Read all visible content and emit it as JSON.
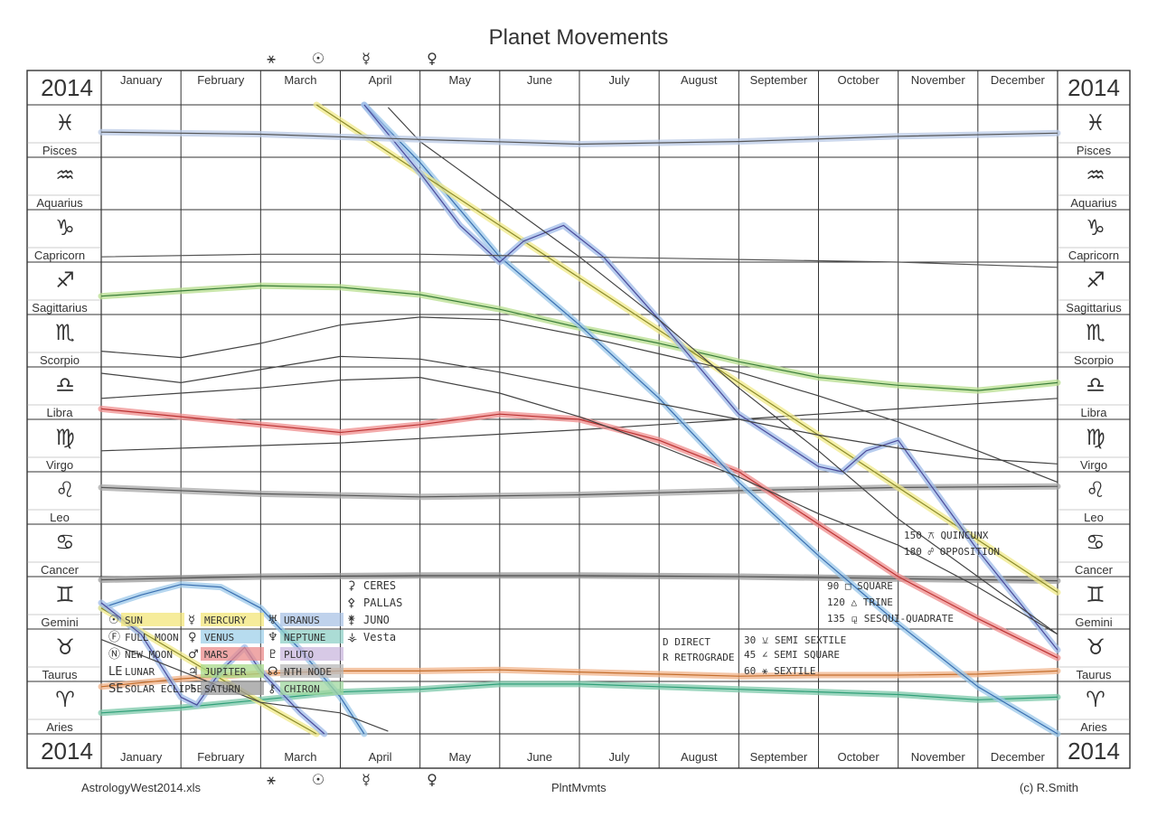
{
  "title": "Planet Movements",
  "year": "2014",
  "months": [
    "January",
    "February",
    "March",
    "April",
    "May",
    "June",
    "July",
    "August",
    "September",
    "October",
    "November",
    "December"
  ],
  "signs": [
    {
      "name": "Pisces",
      "glyph": "♓"
    },
    {
      "name": "Aquarius",
      "glyph": "♒"
    },
    {
      "name": "Capricorn",
      "glyph": "♑"
    },
    {
      "name": "Sagittarius",
      "glyph": "♐"
    },
    {
      "name": "Scorpio",
      "glyph": "♏"
    },
    {
      "name": "Libra",
      "glyph": "♎"
    },
    {
      "name": "Virgo",
      "glyph": "♍"
    },
    {
      "name": "Leo",
      "glyph": "♌"
    },
    {
      "name": "Cancer",
      "glyph": "♋"
    },
    {
      "name": "Gemini",
      "glyph": "♊"
    },
    {
      "name": "Taurus",
      "glyph": "♉"
    },
    {
      "name": "Aries",
      "glyph": "♈"
    }
  ],
  "ingress_top": [
    "⚹",
    "☉",
    "☿",
    "♀"
  ],
  "legend": {
    "bodies": [
      {
        "glyph": "☉",
        "label": "SUN",
        "color": "#f3e57a"
      },
      {
        "glyph": "Ⓕ",
        "label": "FULL MOON",
        "color": ""
      },
      {
        "glyph": "Ⓝ",
        "label": "NEW MOON",
        "color": ""
      },
      {
        "glyph": "LE",
        "label": "LUNAR",
        "color": ""
      },
      {
        "glyph": "SE",
        "label": "SOLAR ECLIPSE",
        "color": ""
      },
      {
        "glyph": "☿",
        "label": "MERCURY",
        "color": "#f3e57a"
      },
      {
        "glyph": "♀",
        "label": "VENUS",
        "color": "#9fd0ea"
      },
      {
        "glyph": "♂",
        "label": "MARS",
        "color": "#e98b8b"
      },
      {
        "glyph": "♃",
        "label": "JUPITER",
        "color": "#a8d98a"
      },
      {
        "glyph": "♄",
        "label": "SATURN",
        "color": "#9a9a9a"
      },
      {
        "glyph": "♅",
        "label": "URANUS",
        "color": "#a9c3e6"
      },
      {
        "glyph": "♆",
        "label": "NEPTUNE",
        "color": "#8fd0c7"
      },
      {
        "glyph": "♇",
        "label": "PLUTO",
        "color": "#c9b7dd"
      },
      {
        "glyph": "☊",
        "label": "NTH NODE",
        "color": "#b8b8b8"
      },
      {
        "glyph": "⚷",
        "label": "CHIRON",
        "color": "#9fd79f"
      },
      {
        "glyph": "⚳",
        "label": "CERES",
        "color": ""
      },
      {
        "glyph": "⚴",
        "label": "PALLAS",
        "color": ""
      },
      {
        "glyph": "⚵",
        "label": "JUNO",
        "color": ""
      },
      {
        "glyph": "⚶",
        "label": "Vesta",
        "color": ""
      }
    ],
    "aspects": [
      {
        "deg": "150",
        "glyph": "⚻",
        "label": "QUINCUNX"
      },
      {
        "deg": "180",
        "glyph": "☍",
        "label": "OPPOSITION"
      },
      {
        "deg": "90",
        "glyph": "□",
        "label": "SQUARE"
      },
      {
        "deg": "120",
        "glyph": "△",
        "label": "TRINE"
      },
      {
        "deg": "135",
        "glyph": "⚼",
        "label": "SESQUI-QUADRATE"
      },
      {
        "deg": "30",
        "glyph": "⚺",
        "label": "SEMI SEXTILE"
      },
      {
        "deg": "45",
        "glyph": "∠",
        "label": "SEMI SQUARE"
      },
      {
        "deg": "60",
        "glyph": "⚹",
        "label": "SEXTILE"
      }
    ],
    "direct": "D DIRECT",
    "retrograde": "R RETROGRADE"
  },
  "series": [
    {
      "name": "Chiron",
      "color": "#2f9f78",
      "fill": "#7cc8a9",
      "points": [
        [
          0.0,
          11.6
        ],
        [
          0.5,
          11.55
        ],
        [
          1.0,
          11.5
        ],
        [
          2.0,
          11.35
        ],
        [
          3.0,
          11.2
        ],
        [
          4.0,
          11.15
        ],
        [
          5.0,
          11.05
        ],
        [
          6.0,
          11.05
        ],
        [
          7.0,
          11.1
        ],
        [
          8.0,
          11.15
        ],
        [
          9.0,
          11.2
        ],
        [
          10.0,
          11.25
        ],
        [
          11.0,
          11.35
        ],
        [
          12.0,
          11.3
        ]
      ]
    },
    {
      "name": "Neptune",
      "color": "#c46e2c",
      "fill": "#f0b38a",
      "points": [
        [
          0.0,
          11.1
        ],
        [
          1.0,
          10.95
        ],
        [
          2.0,
          10.85
        ],
        [
          3.0,
          10.8
        ],
        [
          4.0,
          10.8
        ],
        [
          5.0,
          10.78
        ],
        [
          6.0,
          10.82
        ],
        [
          7.0,
          10.86
        ],
        [
          8.0,
          10.9
        ],
        [
          9.0,
          10.88
        ],
        [
          10.0,
          10.88
        ],
        [
          11.0,
          10.86
        ],
        [
          12.0,
          10.8
        ]
      ]
    },
    {
      "name": "Pluto",
      "color": "#555",
      "fill": "#9a9a9a",
      "points": [
        [
          0,
          9.06
        ],
        [
          2,
          9.0
        ],
        [
          4,
          8.98
        ],
        [
          6,
          8.98
        ],
        [
          8,
          9.0
        ],
        [
          10,
          9.04
        ],
        [
          12,
          9.08
        ]
      ]
    },
    {
      "name": "Saturn",
      "color": "#555",
      "fill": "#a8a8a8",
      "points": [
        [
          0,
          7.3
        ],
        [
          2,
          7.42
        ],
        [
          4,
          7.48
        ],
        [
          6,
          7.44
        ],
        [
          8,
          7.36
        ],
        [
          10,
          7.3
        ],
        [
          12,
          7.28
        ]
      ]
    },
    {
      "name": "Node",
      "color": "#444",
      "fill": "",
      "points": [
        [
          0,
          6.6
        ],
        [
          3,
          6.45
        ],
        [
          6,
          6.2
        ],
        [
          9,
          5.9
        ],
        [
          12,
          5.6
        ]
      ]
    },
    {
      "name": "Mars",
      "color": "#b33",
      "fill": "#ef8d8d",
      "points": [
        [
          0,
          5.8
        ],
        [
          1,
          5.95
        ],
        [
          2,
          6.1
        ],
        [
          3,
          6.25
        ],
        [
          4,
          6.1
        ],
        [
          5,
          5.9
        ],
        [
          6,
          6.0
        ],
        [
          7,
          6.4
        ],
        [
          8,
          7.0
        ],
        [
          9,
          8.0
        ],
        [
          10,
          9.0
        ],
        [
          11,
          9.8
        ],
        [
          12,
          10.55
        ]
      ]
    },
    {
      "name": "Jupiter",
      "color": "#3a7d3a",
      "fill": "#b7de8e",
      "points": [
        [
          0,
          3.65
        ],
        [
          1,
          3.55
        ],
        [
          2,
          3.45
        ],
        [
          3,
          3.48
        ],
        [
          4,
          3.62
        ],
        [
          5,
          3.9
        ],
        [
          6,
          4.25
        ],
        [
          7,
          4.55
        ],
        [
          8,
          4.9
        ],
        [
          9,
          5.2
        ],
        [
          10,
          5.35
        ],
        [
          11,
          5.45
        ],
        [
          12,
          5.3
        ]
      ]
    },
    {
      "name": "Venus",
      "color": "#3a6fb0",
      "fill": "#9cc8ea",
      "points": [
        [
          0,
          9.6
        ],
        [
          0.5,
          9.35
        ],
        [
          1,
          9.15
        ],
        [
          1.5,
          9.2
        ],
        [
          2,
          9.6
        ],
        [
          2.5,
          10.4
        ],
        [
          3,
          11.3
        ],
        [
          3.3,
          12.0
        ]
      ]
    },
    {
      "name": "Venus2",
      "color": "#3a6fb0",
      "fill": "#9cc8ea",
      "points": [
        [
          3.3,
          0.0
        ],
        [
          4,
          1.1
        ],
        [
          5,
          2.9
        ],
        [
          6,
          4.2
        ],
        [
          7,
          5.6
        ],
        [
          8,
          7.2
        ],
        [
          9,
          8.6
        ],
        [
          10,
          9.9
        ],
        [
          11,
          11.1
        ],
        [
          12,
          12.0
        ]
      ]
    },
    {
      "name": "Sun",
      "color": "#8a8a2a",
      "fill": "#f0ea8a",
      "points": [
        [
          0,
          9.6
        ],
        [
          1,
          10.5
        ],
        [
          2,
          11.4
        ],
        [
          2.7,
          12.0
        ]
      ]
    },
    {
      "name": "Sun2",
      "color": "#8a8a2a",
      "fill": "#f0ea8a",
      "points": [
        [
          2.7,
          0.0
        ],
        [
          3,
          0.3
        ],
        [
          4,
          1.3
        ],
        [
          5,
          2.3
        ],
        [
          6,
          3.3
        ],
        [
          7,
          4.3
        ],
        [
          8,
          5.3
        ],
        [
          9,
          6.3
        ],
        [
          10,
          7.3
        ],
        [
          11,
          8.3
        ],
        [
          12,
          9.3
        ]
      ]
    },
    {
      "name": "Mercury",
      "color": "#4a4a9a",
      "fill": "#9fbbe8",
      "points": [
        [
          0,
          9.5
        ],
        [
          0.5,
          10.1
        ],
        [
          1.0,
          11.3
        ],
        [
          1.2,
          11.45
        ],
        [
          1.5,
          10.8
        ],
        [
          1.8,
          10.35
        ],
        [
          2.0,
          10.8
        ],
        [
          2.5,
          11.6
        ],
        [
          2.8,
          12.0
        ]
      ]
    },
    {
      "name": "Mercury2",
      "color": "#4a4a9a",
      "fill": "#9fbbe8",
      "points": [
        [
          3.3,
          0.0
        ],
        [
          4,
          1.3
        ],
        [
          4.5,
          2.3
        ],
        [
          5.0,
          3.0
        ],
        [
          5.3,
          2.6
        ],
        [
          5.8,
          2.3
        ],
        [
          6.3,
          2.9
        ],
        [
          7,
          4.1
        ],
        [
          8,
          5.9
        ],
        [
          9,
          6.9
        ],
        [
          9.3,
          7.0
        ],
        [
          9.6,
          6.6
        ],
        [
          10,
          6.4
        ],
        [
          11,
          8.5
        ],
        [
          12,
          10.4
        ]
      ]
    },
    {
      "name": "Ceres",
      "color": "#444",
      "fill": "",
      "points": [
        [
          0,
          5.6
        ],
        [
          1,
          5.5
        ],
        [
          2,
          5.4
        ],
        [
          3,
          5.25
        ],
        [
          4,
          5.2
        ],
        [
          5,
          5.5
        ],
        [
          6,
          5.95
        ],
        [
          7,
          6.5
        ],
        [
          8,
          7.1
        ],
        [
          9,
          7.8
        ],
        [
          10,
          8.4
        ],
        [
          11,
          9.2
        ],
        [
          12,
          10.1
        ]
      ]
    },
    {
      "name": "Pallas",
      "color": "#444",
      "fill": "",
      "points": [
        [
          0,
          5.12
        ],
        [
          1,
          5.3
        ],
        [
          2,
          5.05
        ],
        [
          3,
          4.8
        ],
        [
          4,
          4.85
        ],
        [
          5,
          5.1
        ],
        [
          6,
          5.4
        ],
        [
          7,
          5.7
        ],
        [
          8,
          6.0
        ],
        [
          9,
          6.3
        ],
        [
          10,
          6.55
        ],
        [
          11,
          6.75
        ],
        [
          12,
          6.85
        ]
      ]
    },
    {
      "name": "Juno",
      "color": "#444",
      "fill": "",
      "points": [
        [
          0,
          10.2
        ],
        [
          1,
          10.8
        ],
        [
          2,
          11.4
        ],
        [
          3,
          11.6
        ],
        [
          3.6,
          11.95
        ]
      ]
    },
    {
      "name": "Juno2",
      "color": "#444",
      "fill": "",
      "points": [
        [
          3.6,
          0.05
        ],
        [
          4,
          0.7
        ],
        [
          5,
          1.8
        ],
        [
          6,
          2.9
        ],
        [
          7,
          4.1
        ],
        [
          8,
          5.4
        ],
        [
          9,
          6.6
        ],
        [
          10,
          7.9
        ],
        [
          11,
          9.0
        ],
        [
          12,
          10.1
        ]
      ]
    },
    {
      "name": "Vesta",
      "color": "#444",
      "fill": "",
      "points": [
        [
          0,
          4.7
        ],
        [
          1,
          4.82
        ],
        [
          2,
          4.55
        ],
        [
          3,
          4.2
        ],
        [
          4,
          4.05
        ],
        [
          5,
          4.1
        ],
        [
          6,
          4.4
        ],
        [
          7,
          4.75
        ],
        [
          8,
          5.1
        ],
        [
          9,
          5.55
        ],
        [
          10,
          6.05
        ],
        [
          11,
          6.6
        ],
        [
          12,
          7.2
        ]
      ]
    },
    {
      "name": "Uranus",
      "color": "#555",
      "fill": "#b9c9e6",
      "points": [
        [
          0,
          0.52
        ],
        [
          2,
          0.56
        ],
        [
          4,
          0.66
        ],
        [
          6,
          0.75
        ],
        [
          8,
          0.7
        ],
        [
          10,
          0.6
        ],
        [
          12,
          0.54
        ]
      ]
    },
    {
      "name": "Neptune-lower",
      "color": "#555",
      "fill": "",
      "points": [
        [
          0,
          2.9
        ],
        [
          2,
          2.85
        ],
        [
          4,
          2.85
        ],
        [
          6,
          2.9
        ],
        [
          8,
          2.95
        ],
        [
          10,
          3.0
        ],
        [
          12,
          3.1
        ]
      ]
    }
  ],
  "footer": {
    "file": "AstrologyWest2014.xls",
    "sheet": "PlntMvmts",
    "credit": "(c) R.Smith"
  }
}
